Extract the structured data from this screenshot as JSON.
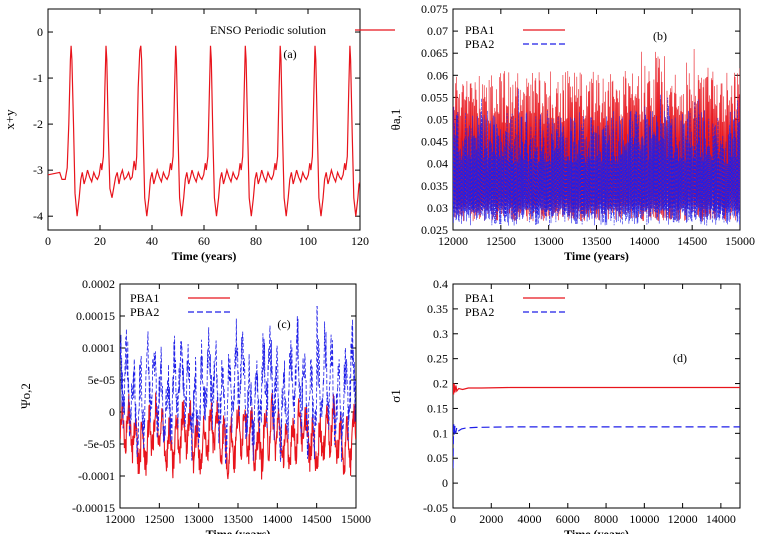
{
  "chart_data": [
    {
      "type": "line",
      "panel_label": "(a)",
      "xlabel": "Time (years)",
      "ylabel": "x+y",
      "xlim": [
        0,
        120
      ],
      "ylim": [
        -4.3,
        0.5
      ],
      "xticks": [
        0,
        20,
        40,
        60,
        80,
        100,
        120
      ],
      "xtick_labels": [
        "0",
        "20",
        "40",
        "60",
        "80",
        "100",
        "120"
      ],
      "yticks": [
        -4,
        -3,
        -2,
        -1,
        0
      ],
      "ytick_labels": [
        "-4",
        "-3",
        "-2",
        "-1",
        "0"
      ],
      "legend": "top-center",
      "color": "#e8141c",
      "period": 13.4,
      "peak_times": [
        8.9,
        22.3,
        35.7,
        49.1,
        62.5,
        75.9,
        89.3,
        102.7,
        116.1
      ],
      "series": [
        {
          "name": "ENSO Periodic solution",
          "x": [
            0,
            4.5,
            5.4,
            6.6,
            7.4,
            8.0,
            8.6,
            8.9,
            9.2,
            9.8,
            10.4,
            11.2,
            12.0,
            12.6,
            13.2,
            13.9,
            14.6,
            15.2,
            16.0,
            16.8,
            17.6,
            18.3,
            19.0,
            19.7,
            20.3,
            20.7,
            21.3,
            21.9,
            22.3,
            22.6,
            23.2,
            23.8,
            24.6,
            25.4,
            26.0,
            26.6,
            27.3,
            28.0,
            28.6,
            29.4,
            30.2,
            31.0,
            31.7,
            32.4,
            33.1,
            33.7,
            34.1,
            34.7,
            35.3,
            35.7,
            36.0,
            36.6,
            37.2,
            38.0,
            38.8,
            39.4,
            40.0,
            40.7,
            41.4,
            42.0,
            42.8,
            43.6,
            44.4,
            45.1,
            45.8,
            46.5,
            47.1,
            47.5,
            48.1,
            48.7,
            49.1,
            49.4,
            50.0,
            50.6,
            51.4,
            52.2,
            52.8,
            53.4,
            54.1,
            54.8,
            55.4,
            56.2,
            57.0,
            57.8,
            58.5,
            59.2,
            59.9,
            60.5,
            60.9,
            61.5,
            62.1,
            62.5,
            62.8,
            63.4,
            64.0,
            64.8,
            65.6,
            66.2,
            66.8,
            67.5,
            68.2,
            68.8,
            69.6,
            70.4,
            71.2,
            71.9,
            72.6,
            73.3,
            73.9,
            74.3,
            74.9,
            75.5,
            75.9,
            76.2,
            76.8,
            77.4,
            78.2,
            79.0,
            79.6,
            80.2,
            80.9,
            81.6,
            82.2,
            83.0,
            83.8,
            84.6,
            85.3,
            86.0,
            86.7,
            87.3,
            87.7,
            88.3,
            88.9,
            89.3,
            89.6,
            90.2,
            90.8,
            91.6,
            92.4,
            93.0,
            93.6,
            94.3,
            95.0,
            95.6,
            96.4,
            97.2,
            98.0,
            98.7,
            99.4,
            100.1,
            100.7,
            101.1,
            101.7,
            102.3,
            102.7,
            103.0,
            103.6,
            104.2,
            105.0,
            105.8,
            106.4,
            107.0,
            107.7,
            108.4,
            109.0,
            109.8,
            110.6,
            111.4,
            112.1,
            112.8,
            113.5,
            114.1,
            114.5,
            115.1,
            115.7,
            116.1,
            116.4,
            117.0,
            117.6,
            118.4,
            119.2,
            119.6,
            120.0
          ],
          "y": [
            -3.1,
            -3.05,
            -3.2,
            -3.2,
            -2.95,
            -2.0,
            -0.6,
            -0.3,
            -0.6,
            -2.0,
            -3.5,
            -4.0,
            -3.6,
            -3.2,
            -3.05,
            -3.3,
            -3.15,
            -3.0,
            -3.15,
            -3.25,
            -3.05,
            -3.15,
            -3.2,
            -3.1,
            -2.85,
            -3.0,
            -2.7,
            -1.2,
            -0.3,
            -0.6,
            -2.2,
            -3.4,
            -3.6,
            -3.35,
            -3.15,
            -3.05,
            -3.3,
            -3.1,
            -3.0,
            -3.2,
            -3.15,
            -3.05,
            -3.2,
            -3.15,
            -2.8,
            -3.0,
            -2.7,
            -1.2,
            -0.4,
            -0.3,
            -0.6,
            -2.2,
            -3.6,
            -4.0,
            -3.6,
            -3.2,
            -3.05,
            -3.3,
            -3.15,
            -3.0,
            -3.15,
            -3.25,
            -3.05,
            -3.15,
            -3.2,
            -3.1,
            -2.85,
            -3.0,
            -2.7,
            -1.2,
            -0.3,
            -0.6,
            -2.2,
            -3.6,
            -4.0,
            -3.6,
            -3.2,
            -3.05,
            -3.3,
            -3.15,
            -3.0,
            -3.15,
            -3.25,
            -3.05,
            -3.15,
            -3.2,
            -3.1,
            -2.85,
            -3.0,
            -2.7,
            -1.2,
            -0.3,
            -0.6,
            -2.2,
            -3.6,
            -4.0,
            -3.6,
            -3.2,
            -3.05,
            -3.3,
            -3.15,
            -3.0,
            -3.15,
            -3.25,
            -3.05,
            -3.15,
            -3.2,
            -3.1,
            -2.85,
            -3.0,
            -2.7,
            -1.2,
            -0.3,
            -0.6,
            -2.2,
            -3.6,
            -4.0,
            -3.6,
            -3.2,
            -3.05,
            -3.3,
            -3.15,
            -3.0,
            -3.15,
            -3.25,
            -3.05,
            -3.15,
            -3.2,
            -3.1,
            -2.85,
            -3.0,
            -2.7,
            -1.2,
            -0.3,
            -0.6,
            -2.2,
            -3.6,
            -4.0,
            -3.6,
            -3.2,
            -3.05,
            -3.3,
            -3.15,
            -3.0,
            -3.15,
            -3.25,
            -3.05,
            -3.15,
            -3.2,
            -3.1,
            -2.85,
            -3.0,
            -2.7,
            -1.2,
            -0.3,
            -0.6,
            -2.2,
            -3.6,
            -4.0,
            -3.6,
            -3.2,
            -3.05,
            -3.3,
            -3.15,
            -3.0,
            -3.15,
            -3.25,
            -3.05,
            -3.15,
            -3.2,
            -3.1,
            -2.85,
            -3.0,
            -2.7,
            -1.2,
            -0.3,
            -0.6,
            -2.2,
            -3.6,
            -4.0,
            -3.6,
            -3.3,
            -3.25
          ]
        }
      ]
    },
    {
      "type": "line",
      "panel_label": "(b)",
      "xlabel": "Time (years)",
      "ylabel": "θa,1",
      "xlim": [
        12000,
        15000
      ],
      "ylim": [
        0.025,
        0.075
      ],
      "xticks": [
        12000,
        12500,
        13000,
        13500,
        14000,
        14500,
        15000
      ],
      "xtick_labels": [
        "12000",
        "12500",
        "13000",
        "13500",
        "14000",
        "14500",
        "15000"
      ],
      "yticks": [
        0.025,
        0.03,
        0.035,
        0.04,
        0.045,
        0.05,
        0.055,
        0.06,
        0.065,
        0.07,
        0.075
      ],
      "ytick_labels": [
        "0.025",
        "0.03",
        "0.035",
        "0.04",
        "0.045",
        "0.05",
        "0.055",
        "0.06",
        "0.065",
        "0.07",
        "0.075"
      ],
      "legend": "top-left",
      "dense_oscillation": true,
      "series": [
        {
          "name": "PBA1",
          "color": "#e8141c",
          "style": "solid",
          "mean": 0.035,
          "range": [
            0.027,
            0.067
          ],
          "typical_peak": 0.061
        },
        {
          "name": "PBA2",
          "color": "#1f1fe8",
          "style": "dashed",
          "mean": 0.034,
          "range": [
            0.026,
            0.066
          ],
          "typical_peak": 0.052
        }
      ]
    },
    {
      "type": "line",
      "panel_label": "(c)",
      "xlabel": "Time (years)",
      "ylabel": "Ψo,2",
      "xlim": [
        12000,
        15000
      ],
      "ylim": [
        -0.00015,
        0.0002
      ],
      "xticks": [
        12000,
        12500,
        13000,
        13500,
        14000,
        14500,
        15000
      ],
      "xtick_labels": [
        "12000",
        "12500",
        "13000",
        "13500",
        "14000",
        "14500",
        "15000"
      ],
      "yticks": [
        -0.00015,
        -0.0001,
        -5e-05,
        0,
        5e-05,
        0.0001,
        0.00015,
        0.0002
      ],
      "ytick_labels": [
        "-0.00015",
        "-0.0001",
        "-5e-05",
        "0",
        "5e-05",
        "0.0001",
        "0.00015",
        "0.0002"
      ],
      "legend": "top-left",
      "dense_oscillation": true,
      "series": [
        {
          "name": "PBA1",
          "color": "#e8141c",
          "style": "solid",
          "range": [
            -0.00012,
            4e-05
          ]
        },
        {
          "name": "PBA2",
          "color": "#1f1fe8",
          "style": "dashed",
          "range": [
            -0.0001,
            0.000165
          ]
        }
      ]
    },
    {
      "type": "line",
      "panel_label": "(d)",
      "xlabel": "Time (years)",
      "ylabel": "σ1",
      "xlim": [
        0,
        15000
      ],
      "ylim": [
        -0.05,
        0.4
      ],
      "xticks": [
        0,
        2000,
        4000,
        6000,
        8000,
        10000,
        12000,
        14000
      ],
      "xtick_labels": [
        "0",
        "2000",
        "4000",
        "6000",
        "8000",
        "10000",
        "12000",
        "14000"
      ],
      "yticks": [
        -0.05,
        0,
        0.05,
        0.1,
        0.15,
        0.2,
        0.25,
        0.3,
        0.35,
        0.4
      ],
      "ytick_labels": [
        "-0.05",
        "0",
        "0.05",
        "0.1",
        "0.15",
        "0.2",
        "0.25",
        "0.3",
        "0.35",
        "0.4"
      ],
      "legend": "top-left",
      "series": [
        {
          "name": "PBA1",
          "color": "#e8141c",
          "style": "solid",
          "x": [
            0,
            30,
            60,
            100,
            150,
            200,
            300,
            500,
            800,
            1500,
            3000,
            15000
          ],
          "y": [
            0.2,
            0.178,
            0.2,
            0.182,
            0.196,
            0.185,
            0.19,
            0.188,
            0.191,
            0.191,
            0.192,
            0.192
          ]
        },
        {
          "name": "PBA2",
          "color": "#1f1fe8",
          "style": "dashed",
          "x": [
            0,
            20,
            40,
            70,
            100,
            140,
            200,
            300,
            450,
            700,
            1200,
            3000,
            15000
          ],
          "y": [
            0.03,
            0.09,
            0.12,
            0.095,
            0.115,
            0.1,
            0.112,
            0.105,
            0.109,
            0.111,
            0.112,
            0.113,
            0.113
          ]
        }
      ]
    }
  ]
}
